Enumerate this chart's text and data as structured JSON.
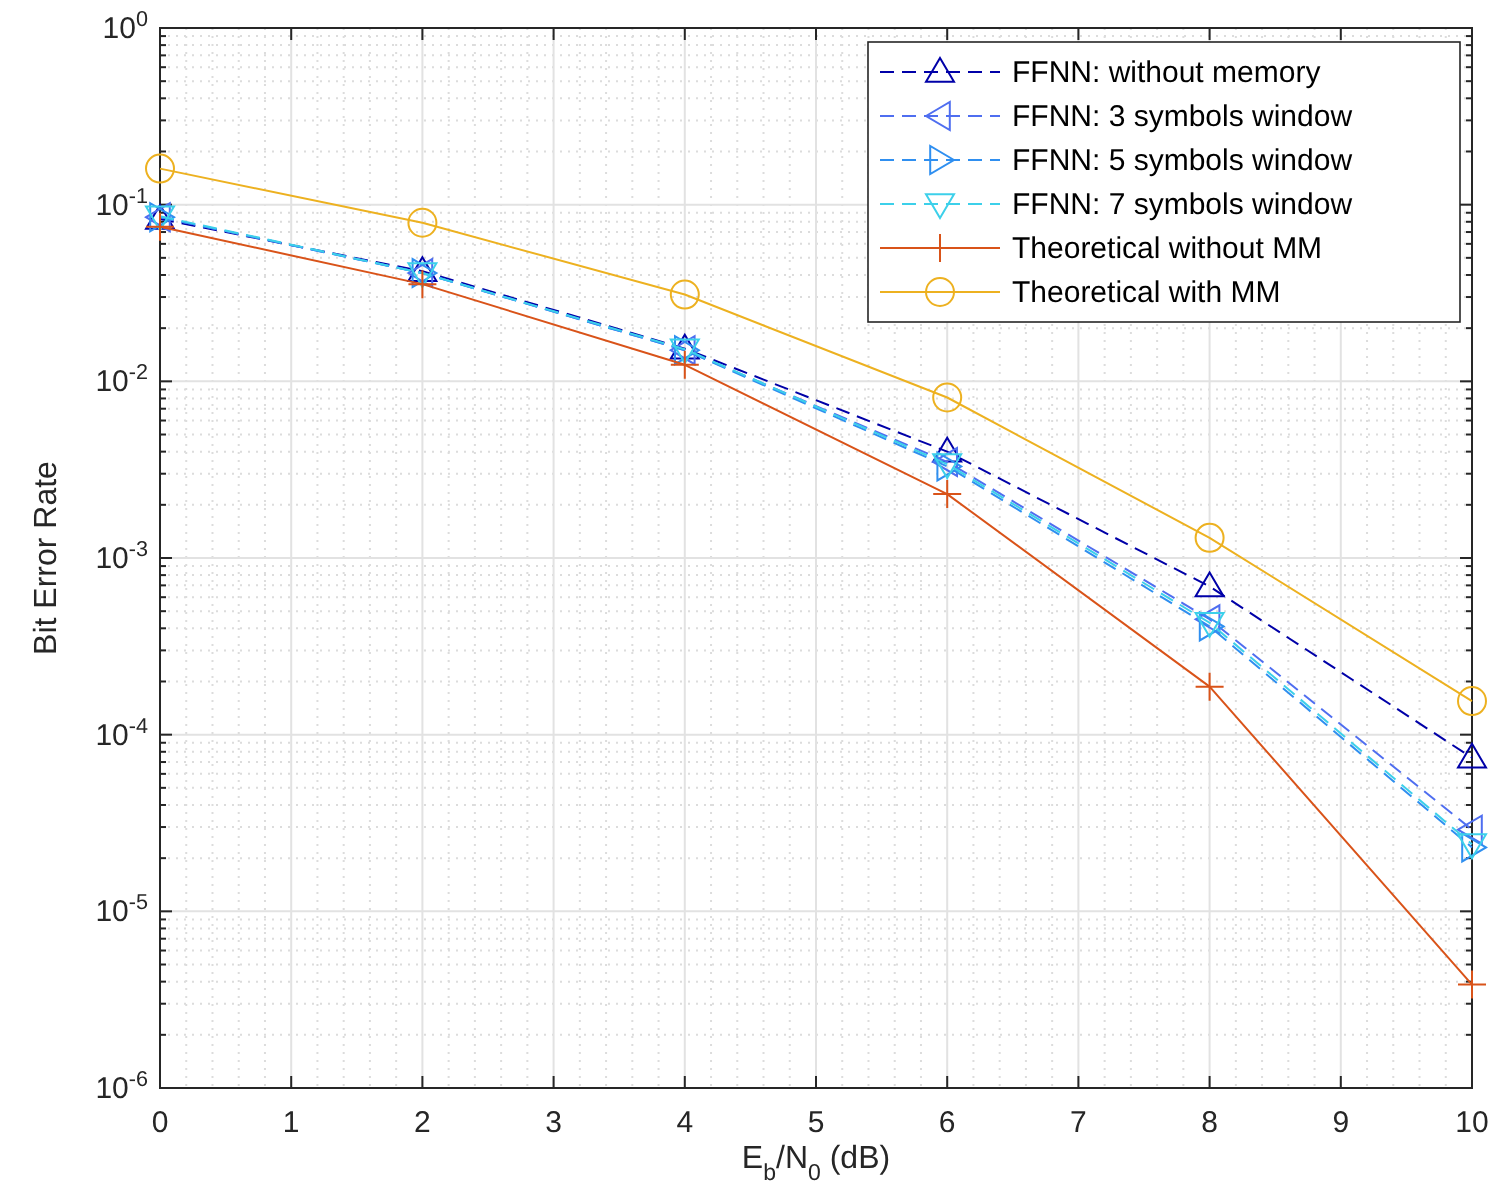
{
  "chart_data": {
    "type": "line",
    "xlabel": "E$_{b}$/N$_{0}$ (dB)",
    "ylabel": "Bit Error Rate",
    "x": [
      0,
      2,
      4,
      6,
      8,
      10
    ],
    "xlim": [
      0,
      10
    ],
    "xticks": [
      0,
      1,
      2,
      3,
      4,
      5,
      6,
      7,
      8,
      9,
      10
    ],
    "log": "y",
    "ylim": [
      1e-06,
      1
    ],
    "yticks": [
      {
        "value": 1e-06,
        "label": "10$^{-6}$"
      },
      {
        "value": 1e-05,
        "label": "10$^{-5}$"
      },
      {
        "value": 0.0001,
        "label": "10$^{-4}$"
      },
      {
        "value": 0.001,
        "label": "10$^{-3}$"
      },
      {
        "value": 0.01,
        "label": "10$^{-2}$"
      },
      {
        "value": 0.1,
        "label": "10$^{-1}$"
      },
      {
        "value": 1,
        "label": "10$^{0}$"
      }
    ],
    "grid": true,
    "legend": "top right",
    "series": [
      {
        "name": "FFNN: without memory",
        "color": "#0000a8",
        "marker": "triangle",
        "line_style": "dashed",
        "values": [
          0.083,
          0.042,
          0.0153,
          0.004,
          0.00069,
          7.4e-05
        ]
      },
      {
        "name": "FFNN: 3 symbols window",
        "color": "#4f6ef0",
        "marker": "triangle-left",
        "line_style": "dashed",
        "values": [
          0.085,
          0.041,
          0.015,
          0.0035,
          0.00045,
          2.9e-05
        ]
      },
      {
        "name": "FFNN: 5 symbols window",
        "color": "#2f8ff0",
        "marker": "triangle-right",
        "line_style": "dashed",
        "values": [
          0.085,
          0.041,
          0.015,
          0.0033,
          0.00041,
          2.3e-05
        ]
      },
      {
        "name": "FFNN: 7 symbols window",
        "color": "#3cd0ea",
        "marker": "triangle-down",
        "line_style": "dashed",
        "values": [
          0.086,
          0.041,
          0.0152,
          0.0034,
          0.00043,
          2.4e-05
        ]
      },
      {
        "name": "Theoretical without MM",
        "color": "#d95319",
        "marker": "cross",
        "line_style": "solid",
        "values": [
          0.075,
          0.0355,
          0.0124,
          0.0023,
          0.000187,
          3.85e-06
        ]
      },
      {
        "name": "Theoretical with MM",
        "color": "#edb120",
        "marker": "circle",
        "line_style": "solid",
        "values": [
          0.16,
          0.079,
          0.031,
          0.0081,
          0.0013,
          0.000155
        ]
      }
    ]
  }
}
